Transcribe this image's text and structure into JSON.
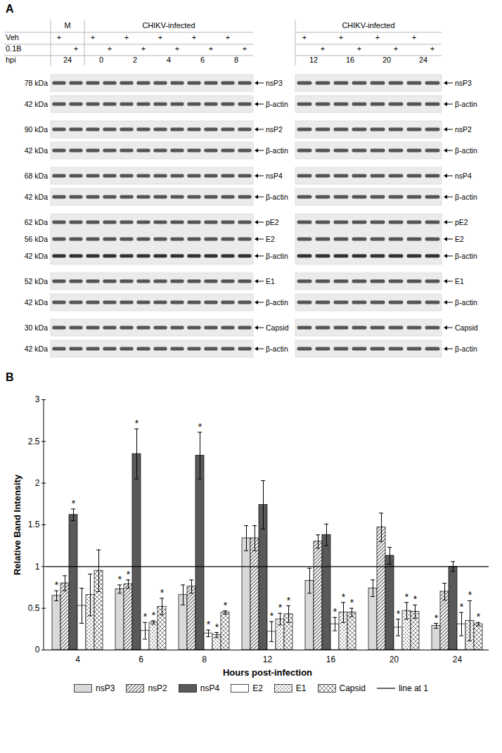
{
  "panel_a": {
    "label": "A",
    "gels": [
      {
        "row_labels": [
          "Veh",
          "0.1B",
          "hpi"
        ],
        "group": [
          "M",
          "M",
          "CHIKV-infected",
          "CHIKV-infected",
          "CHIKV-infected",
          "CHIKV-infected",
          "CHIKV-infected",
          "CHIKV-infected",
          "CHIKV-infected",
          "CHIKV-infected",
          "CHIKV-infected",
          "CHIKV-infected"
        ],
        "rows": [
          [
            "+",
            null,
            "+",
            null,
            "+",
            null,
            "+",
            null,
            "+",
            null,
            "+",
            null
          ],
          [
            null,
            "+",
            null,
            "+",
            null,
            "+",
            null,
            "+",
            null,
            "+",
            null,
            "+"
          ]
        ],
        "hpi": [
          24,
          24,
          0,
          0,
          2,
          2,
          4,
          4,
          6,
          6,
          8,
          8
        ]
      },
      {
        "group": [
          "CHIKV-infected",
          "CHIKV-infected",
          "CHIKV-infected",
          "CHIKV-infected",
          "CHIKV-infected",
          "CHIKV-infected",
          "CHIKV-infected",
          "CHIKV-infected"
        ],
        "rows": [
          [
            "+",
            null,
            "+",
            null,
            "+",
            null,
            "+",
            null
          ],
          [
            null,
            "+",
            null,
            "+",
            null,
            "+",
            null,
            "+"
          ]
        ],
        "hpi": [
          12,
          12,
          16,
          16,
          20,
          20,
          24,
          24
        ]
      }
    ],
    "blots": [
      [
        [
          {
            "kda": "78 kDa",
            "protein": "nsP3"
          }
        ],
        [
          {
            "kda": "42 kDa",
            "protein": "β-actin"
          }
        ]
      ],
      [
        [
          {
            "kda": "90 kDa",
            "protein": "nsP2"
          }
        ],
        [
          {
            "kda": "42 kDa",
            "protein": "β-actin"
          }
        ]
      ],
      [
        [
          {
            "kda": "68 kDa",
            "protein": "nsP4"
          }
        ],
        [
          {
            "kda": "42 kDa",
            "protein": "β-actin"
          }
        ]
      ],
      [
        [
          {
            "kda": "62 kDa",
            "protein": "pE2"
          },
          {
            "kda": "56 kDa",
            "protein": "E2"
          },
          {
            "kda": "42 kDa",
            "protein": "β-actin"
          }
        ]
      ],
      [
        [
          {
            "kda": "52 kDa",
            "protein": "E1"
          }
        ],
        [
          {
            "kda": "42 kDa",
            "protein": "β-actin"
          }
        ]
      ],
      [
        [
          {
            "kda": "30 kDa",
            "protein": "Capsid"
          }
        ],
        [
          {
            "kda": "42 kDa",
            "protein": "β-actin"
          }
        ]
      ]
    ]
  },
  "chart_data": {
    "type": "bar",
    "title": "B",
    "x_label": "Hours post-infection",
    "y_label": "Relative Band Intensity",
    "categories": [
      4,
      6,
      8,
      12,
      16,
      20,
      24
    ],
    "ylim": [
      0,
      3
    ],
    "yticks": [
      0,
      0.5,
      1,
      1.5,
      2,
      2.5,
      3
    ],
    "legend": "bottom",
    "reference_line": {
      "value": 1,
      "name": "line at 1"
    },
    "series": [
      {
        "name": "nsP3",
        "color": "#d9d9d9",
        "values": [
          0.65,
          0.73,
          0.66,
          1.34,
          0.83,
          0.74,
          0.29
        ],
        "errors": [
          0.06,
          0.05,
          0.12,
          0.15,
          0.15,
          0.1,
          0.03
        ],
        "significance": [
          "*",
          "*",
          null,
          null,
          null,
          null,
          "*"
        ]
      },
      {
        "name": "nsP2",
        "color": "#6f6f6f",
        "values": [
          0.8,
          0.79,
          0.76,
          1.34,
          1.3,
          1.47,
          0.7
        ],
        "errors": [
          0.09,
          0.05,
          0.08,
          0.15,
          0.08,
          0.17,
          0.1
        ],
        "significance": [
          null,
          "*",
          null,
          null,
          null,
          null,
          null
        ]
      },
      {
        "name": "nsP4",
        "color": "#595959",
        "values": [
          1.62,
          2.35,
          2.33,
          1.74,
          1.38,
          1.13,
          1.0
        ],
        "errors": [
          0.07,
          0.3,
          0.28,
          0.29,
          0.13,
          0.1,
          0.06
        ],
        "significance": [
          "*",
          "*",
          "*",
          null,
          null,
          null,
          null
        ]
      },
      {
        "name": "E2",
        "color": "#ffffff",
        "values": [
          0.53,
          0.23,
          0.2,
          0.22,
          0.31,
          0.27,
          0.31
        ],
        "errors": [
          0.21,
          0.1,
          0.04,
          0.12,
          0.08,
          0.1,
          0.14
        ],
        "significance": [
          null,
          "*",
          "*",
          "*",
          "*",
          "*",
          "*"
        ]
      },
      {
        "name": "E1",
        "color": "#6f6f6f",
        "values": [
          0.66,
          0.33,
          0.18,
          0.37,
          0.45,
          0.47,
          0.35
        ],
        "errors": [
          0.25,
          0.02,
          0.03,
          0.07,
          0.12,
          0.1,
          0.24
        ],
        "significance": [
          null,
          "*",
          "*",
          "*",
          "*",
          "*",
          "*"
        ]
      },
      {
        "name": "Capsid",
        "color": "#6f6f6f",
        "values": [
          0.95,
          0.52,
          0.45,
          0.43,
          0.45,
          0.46,
          0.31
        ],
        "errors": [
          0.25,
          0.1,
          0.02,
          0.1,
          0.05,
          0.08,
          0.02
        ],
        "significance": [
          null,
          "*",
          "*",
          "*",
          "*",
          "*",
          "*"
        ]
      }
    ]
  }
}
